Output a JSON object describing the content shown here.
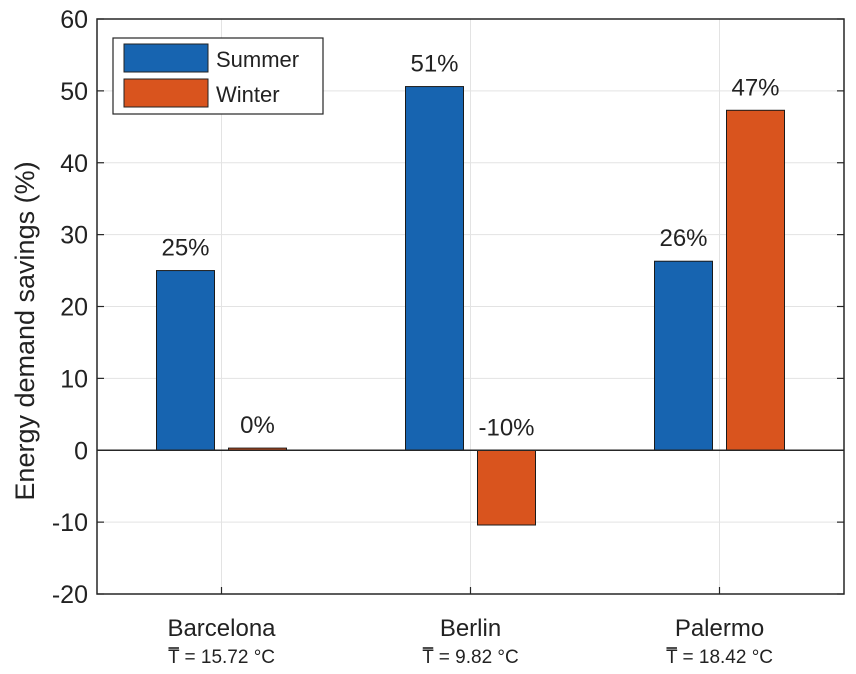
{
  "chart_data": {
    "type": "bar",
    "title": "",
    "xlabel": "",
    "ylabel": "Energy demand savings (%)",
    "ylim": [
      -20,
      60
    ],
    "yticks": [
      -20,
      -10,
      0,
      10,
      20,
      30,
      40,
      50,
      60
    ],
    "grid": true,
    "legend_position": "top-left",
    "categories": [
      "Barcelona",
      "Berlin",
      "Palermo"
    ],
    "category_sublabels": [
      "T = 15.72 °C",
      "T = 9.82 °C",
      "T = 18.42 °C"
    ],
    "series": [
      {
        "name": "Summer",
        "color": "#1764B0",
        "values": [
          25,
          50.6,
          26.3
        ],
        "labels": [
          "25%",
          "51%",
          "26%"
        ]
      },
      {
        "name": "Winter",
        "color": "#D9541E",
        "values": [
          0.3,
          -10.4,
          47.3
        ],
        "labels": [
          "0%",
          "-10%",
          "47%"
        ]
      }
    ]
  }
}
